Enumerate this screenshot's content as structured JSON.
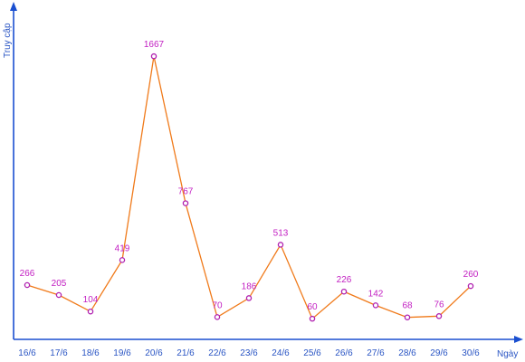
{
  "chart_data": {
    "type": "line",
    "title": "",
    "xlabel": "Ngày",
    "ylabel": "Truy cập",
    "categories": [
      "16/6",
      "17/6",
      "18/6",
      "19/6",
      "20/6",
      "21/6",
      "22/6",
      "23/6",
      "24/6",
      "25/6",
      "26/6",
      "27/6",
      "28/6",
      "29/6",
      "30/6"
    ],
    "series": [
      {
        "values": [
          266,
          205,
          104,
          419,
          1667,
          767,
          70,
          186,
          513,
          60,
          226,
          142,
          68,
          76,
          260
        ]
      }
    ],
    "ylim": [
      0,
      1850
    ],
    "grid": false,
    "colors": {
      "axis": "#1a4fd0",
      "line": "#f07a1a",
      "marker": "#b01fb0",
      "data_label": "#c21fc2",
      "tick_label": "#2a55c4"
    }
  }
}
